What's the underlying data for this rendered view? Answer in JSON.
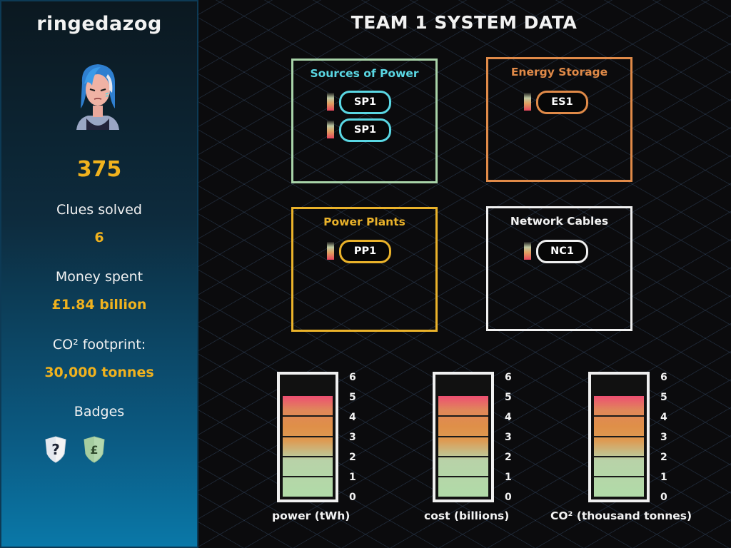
{
  "sidebar": {
    "username": "ringedazog",
    "score": "375",
    "clues_label": "Clues solved",
    "clues_value": "6",
    "money_label": "Money spent",
    "money_value": "£1.84 billion",
    "co2_label": "CO² footprint:",
    "co2_value": "30,000 tonnes",
    "badges_label": "Badges",
    "badges": [
      {
        "icon": "question-shield-icon",
        "glyph": "?"
      },
      {
        "icon": "pound-shield-icon",
        "glyph": "£"
      }
    ]
  },
  "main": {
    "title": "TEAM 1 SYSTEM DATA",
    "panels": [
      {
        "title": "Sources of Power",
        "color": "#5ad7e3",
        "items": [
          "SP1",
          "SP1"
        ]
      },
      {
        "title": "Energy Storage",
        "color": "#e08a48",
        "items": [
          "ES1"
        ]
      },
      {
        "title": "Power Plants",
        "color": "#eab22a",
        "items": [
          "PP1"
        ]
      },
      {
        "title": "Network Cables",
        "color": "#f0f0f0",
        "items": [
          "NC1"
        ]
      }
    ]
  },
  "gauges": [
    {
      "label": "power (tWh)",
      "value": 5,
      "max": 6,
      "ticks": [
        "6",
        "5",
        "4",
        "3",
        "2",
        "1",
        "0"
      ]
    },
    {
      "label": "cost (billions)",
      "value": 5,
      "max": 6,
      "ticks": [
        "6",
        "5",
        "4",
        "3",
        "2",
        "1",
        "0"
      ]
    },
    {
      "label": "CO² (thousand tonnes)",
      "value": 5,
      "max": 6,
      "ticks": [
        "6",
        "5",
        "4",
        "3",
        "2",
        "1",
        "0"
      ]
    }
  ],
  "colors": {
    "accent_gold": "#f0b21e",
    "sidebar_bottom": "#0a78a8"
  }
}
